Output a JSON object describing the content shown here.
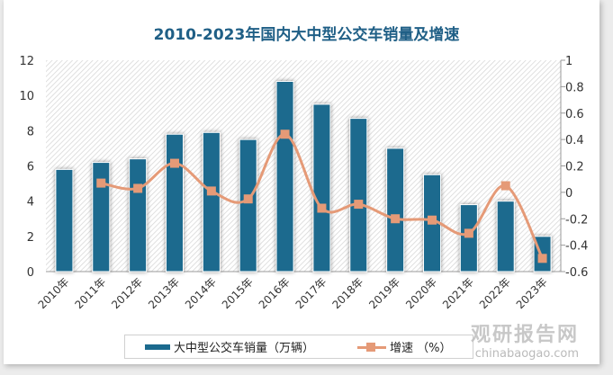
{
  "chart_data": {
    "type": "bar+line",
    "title": "2010-2023年国内大中型公交车销量及增速",
    "categories": [
      "2010年",
      "2011年",
      "2012年",
      "2013年",
      "2014年",
      "2015年",
      "2016年",
      "2017年",
      "2018年",
      "2019年",
      "2020年",
      "2021年",
      "2022年",
      "2023年"
    ],
    "series": [
      {
        "name": "大中型公交车销量（万辆）",
        "type": "bar",
        "axis": "left",
        "color": "#1b6a8e",
        "values": [
          5.8,
          6.2,
          6.4,
          7.8,
          7.9,
          7.5,
          10.8,
          9.5,
          8.7,
          7.0,
          5.5,
          3.8,
          4.0,
          2.0
        ]
      },
      {
        "name": "增速 （%）",
        "type": "line",
        "axis": "right",
        "color": "#e59a77",
        "values": [
          null,
          0.07,
          0.03,
          0.22,
          0.01,
          -0.05,
          0.44,
          -0.12,
          -0.09,
          -0.2,
          -0.21,
          -0.31,
          0.05,
          -0.5
        ]
      }
    ],
    "left_axis": {
      "range": [
        0,
        12
      ],
      "ticks": [
        "0",
        "2",
        "4",
        "6",
        "8",
        "10",
        "12"
      ]
    },
    "right_axis": {
      "range": [
        -0.6,
        1
      ],
      "ticks": [
        "-0.6",
        "-0.4",
        "-0.2",
        "0",
        "0.2",
        "0.4",
        "0.6",
        "0.8",
        "1"
      ]
    },
    "legend": "bottom",
    "grid": false
  },
  "watermark": {
    "name": "观研报告网",
    "url": "chinabaogao.com"
  }
}
